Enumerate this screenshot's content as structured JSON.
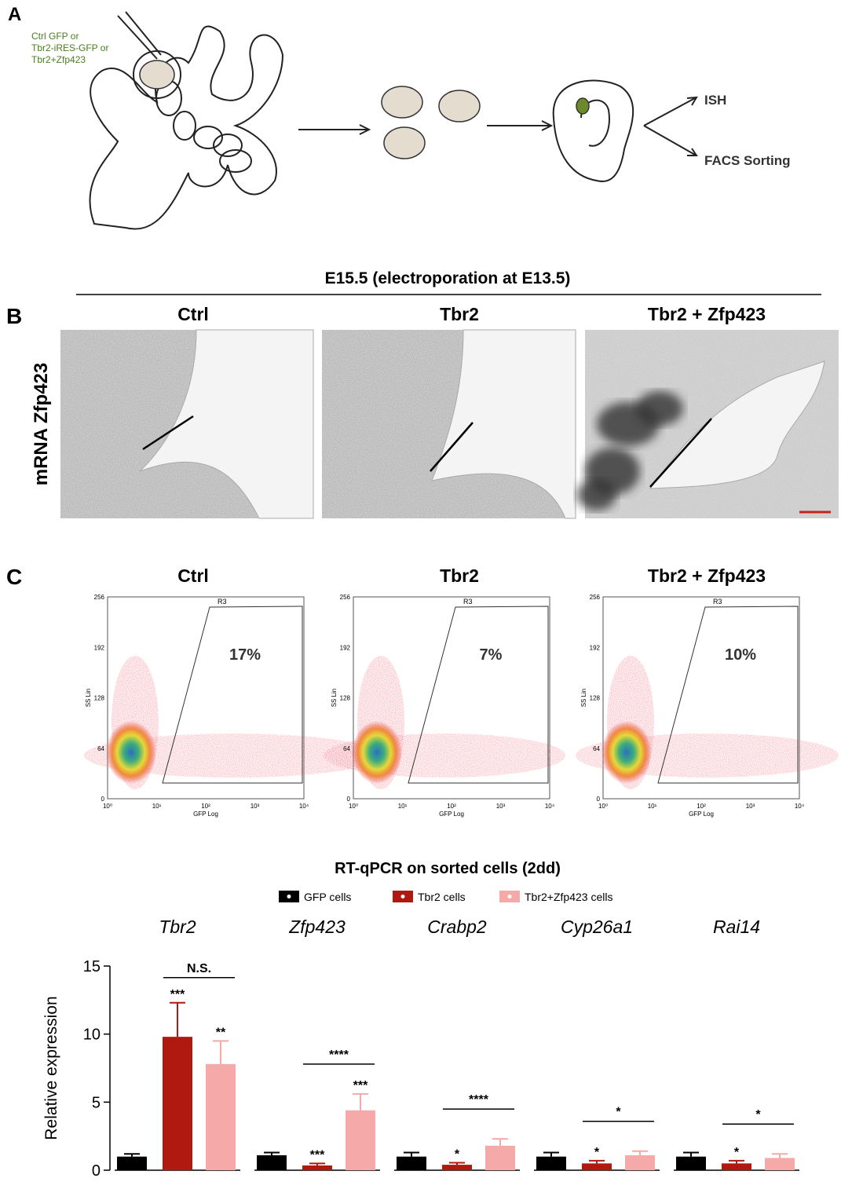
{
  "panel_a": {
    "letter": "A",
    "constructs": [
      "Ctrl GFP or",
      "Tbr2-iRES-GFP or",
      "Tbr2+Zfp423"
    ],
    "outputs": [
      "ISH",
      "FACS Sorting"
    ]
  },
  "panel_b": {
    "letter": "B",
    "header": "E15.5 (electroporation at E13.5)",
    "row_label": "mRNA Zfp423",
    "columns": [
      "Ctrl",
      "Tbr2",
      "Tbr2 + Zfp423"
    ]
  },
  "panel_c": {
    "letter": "C",
    "ylabel": "SS Lin",
    "xlabel": "GFP Log",
    "gate": "R3",
    "yticks": [
      "0",
      "64",
      "128",
      "192",
      "256"
    ],
    "xticks": [
      "10⁰",
      "10¹",
      "10²",
      "10³",
      "10⁴"
    ],
    "plots": [
      {
        "title": "Ctrl",
        "percent": "17%"
      },
      {
        "title": "Tbr2",
        "percent": "7%"
      },
      {
        "title": "Tbr2 + Zfp423",
        "percent": "10%"
      }
    ]
  },
  "chart_data": {
    "type": "bar",
    "title": "RT-qPCR on sorted cells (2dd)",
    "ylabel": "Relative expression",
    "categories": [
      "Tbr2",
      "Zfp423",
      "Crabp2",
      "Cyp26a1",
      "Rai14"
    ],
    "ylim": [
      0,
      15
    ],
    "yticks": [
      0,
      5,
      10,
      15
    ],
    "series": [
      {
        "name": "GFP cells",
        "color": "#000000",
        "values": [
          1.0,
          1.1,
          1.0,
          1.0,
          1.0
        ],
        "errors": [
          0.2,
          0.2,
          0.3,
          0.3,
          0.3
        ],
        "stars": [
          null,
          null,
          null,
          null,
          null
        ]
      },
      {
        "name": "Tbr2 cells",
        "color": "#b0190f",
        "values": [
          9.8,
          0.35,
          0.4,
          0.5,
          0.5
        ],
        "errors": [
          2.5,
          0.15,
          0.15,
          0.2,
          0.2
        ],
        "stars": [
          "***",
          "***",
          "*",
          "*",
          "*"
        ]
      },
      {
        "name": "Tbr2+Zfp423 cells",
        "color": "#f5a9a9",
        "values": [
          7.8,
          4.4,
          1.8,
          1.1,
          0.9
        ],
        "errors": [
          1.7,
          1.2,
          0.5,
          0.3,
          0.3
        ],
        "stars": [
          "**",
          "***",
          null,
          null,
          null
        ]
      }
    ],
    "comparisons": [
      "N.S.",
      "****",
      "****",
      "*",
      "*"
    ]
  }
}
